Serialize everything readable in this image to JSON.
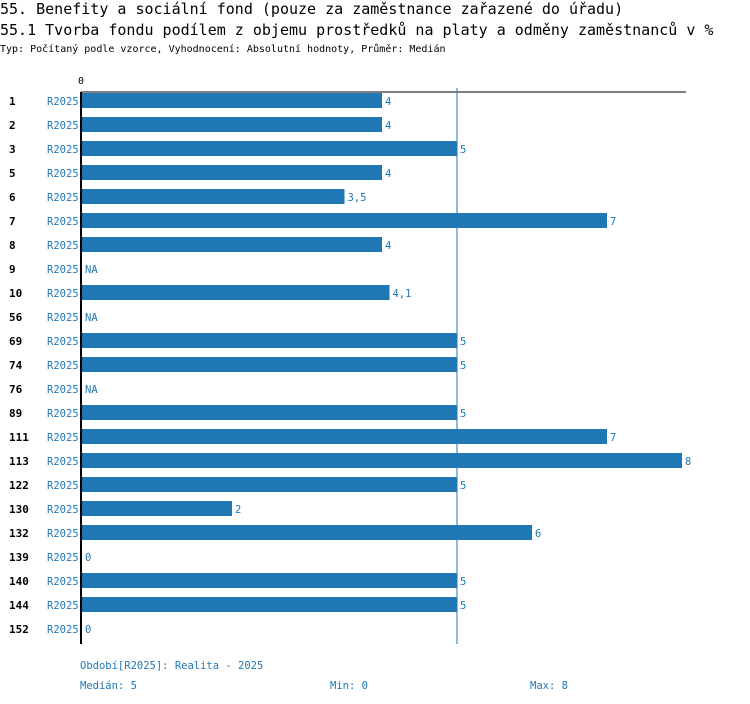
{
  "title": "55. Benefity a sociální fond (pouze za zaměstnance zařazené do úřadu)",
  "subtitle": "55.1 Tvorba fondu podílem z objemu prostředků na platy a odměny zaměstnanců v %",
  "typeline": "Typ: Počítaný podle vzorce, Vyhodnocení: Absolutní hodnoty, Průměr: Medián",
  "chart_data": {
    "type": "bar",
    "orientation": "horizontal",
    "title": "55.1 Tvorba fondu podílem z objemu prostředků na platy a odměny zaměstnanců v %",
    "axis_zero_label": "0",
    "xlim": [
      0,
      8
    ],
    "median_line": 5,
    "bar_color": "#1f77b4",
    "rows": [
      {
        "id": "1",
        "period": "R2025",
        "value": 4,
        "label": "4"
      },
      {
        "id": "2",
        "period": "R2025",
        "value": 4,
        "label": "4"
      },
      {
        "id": "3",
        "period": "R2025",
        "value": 5,
        "label": "5"
      },
      {
        "id": "5",
        "period": "R2025",
        "value": 4,
        "label": "4"
      },
      {
        "id": "6",
        "period": "R2025",
        "value": 3.5,
        "label": "3,5"
      },
      {
        "id": "7",
        "period": "R2025",
        "value": 7,
        "label": "7"
      },
      {
        "id": "8",
        "period": "R2025",
        "value": 4,
        "label": "4"
      },
      {
        "id": "9",
        "period": "R2025",
        "value": null,
        "label": "NA"
      },
      {
        "id": "10",
        "period": "R2025",
        "value": 4.1,
        "label": "4,1"
      },
      {
        "id": "56",
        "period": "R2025",
        "value": null,
        "label": "NA"
      },
      {
        "id": "69",
        "period": "R2025",
        "value": 5,
        "label": "5"
      },
      {
        "id": "74",
        "period": "R2025",
        "value": 5,
        "label": "5"
      },
      {
        "id": "76",
        "period": "R2025",
        "value": null,
        "label": "NA"
      },
      {
        "id": "89",
        "period": "R2025",
        "value": 5,
        "label": "5"
      },
      {
        "id": "111",
        "period": "R2025",
        "value": 7,
        "label": "7"
      },
      {
        "id": "113",
        "period": "R2025",
        "value": 8,
        "label": "8"
      },
      {
        "id": "122",
        "period": "R2025",
        "value": 5,
        "label": "5"
      },
      {
        "id": "130",
        "period": "R2025",
        "value": 2,
        "label": "2"
      },
      {
        "id": "132",
        "period": "R2025",
        "value": 6,
        "label": "6"
      },
      {
        "id": "139",
        "period": "R2025",
        "value": 0,
        "label": "0"
      },
      {
        "id": "140",
        "period": "R2025",
        "value": 5,
        "label": "5"
      },
      {
        "id": "144",
        "period": "R2025",
        "value": 5,
        "label": "5"
      },
      {
        "id": "152",
        "period": "R2025",
        "value": 0,
        "label": "0"
      }
    ]
  },
  "footer": {
    "period_note": "Období[R2025]: Realita - 2025",
    "median": "Medián: 5",
    "min": "Min: 0",
    "max": "Max: 8"
  }
}
